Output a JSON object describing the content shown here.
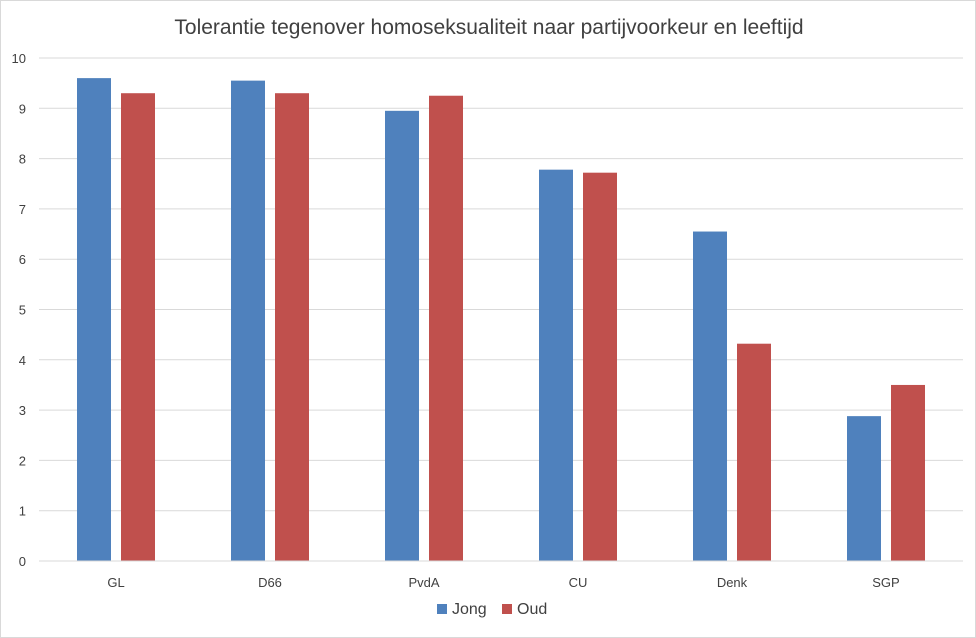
{
  "chart_data": {
    "type": "bar",
    "title": "Tolerantie tegenover homoseksualiteit naar partijvoorkeur en leeftijd",
    "xlabel": "",
    "ylabel": "",
    "categories": [
      "GL",
      "D66",
      "PvdA",
      "CU",
      "Denk",
      "SGP"
    ],
    "series": [
      {
        "name": "Jong",
        "color": "#4f81bd",
        "values": [
          9.6,
          9.55,
          8.95,
          7.78,
          6.55,
          2.88
        ]
      },
      {
        "name": "Oud",
        "color": "#c0504d",
        "values": [
          9.3,
          9.3,
          9.25,
          7.72,
          4.32,
          3.5
        ]
      }
    ],
    "ylim": [
      0,
      10
    ],
    "yticks": [
      0,
      1,
      2,
      3,
      4,
      5,
      6,
      7,
      8,
      9,
      10
    ],
    "grid": true,
    "legend_position": "bottom"
  }
}
